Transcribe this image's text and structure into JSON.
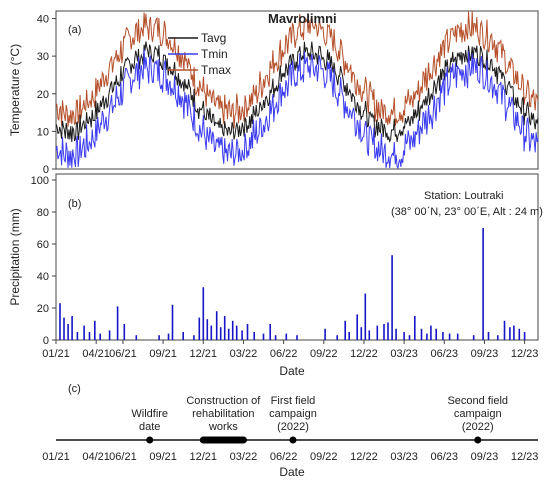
{
  "x_ticks": [
    "01/21",
    "04/21",
    "06/21",
    "09/21",
    "12/21",
    "03/22",
    "06/22",
    "09/22",
    "12/22",
    "03/23",
    "06/23",
    "09/23",
    "12/23"
  ],
  "x_label": "Date",
  "panel_a": {
    "tag": "(a)",
    "title": "Mavrolimni",
    "ylabel": "Temperature (°C)",
    "yticks": [
      "0",
      "10",
      "20",
      "30",
      "40"
    ],
    "legend": [
      {
        "name": "Tavg",
        "color": "#1a1a1a"
      },
      {
        "name": "Tmin",
        "color": "#3b3bf0"
      },
      {
        "name": "Tmax",
        "color": "#b5502a"
      }
    ]
  },
  "panel_b": {
    "tag": "(b)",
    "ylabel": "Precipitation (mm)",
    "yticks": [
      "0",
      "20",
      "40",
      "60",
      "80",
      "100"
    ],
    "station_line1": "Station: Loutraki",
    "station_line2": "(38° 00΄N, 23° 00΄E, Alt : 24 m)",
    "bar_color": "#1515c8"
  },
  "panel_c": {
    "tag": "(c)",
    "events": [
      {
        "label_lines": [
          "Wildfire",
          "date"
        ],
        "month": 7
      },
      {
        "label_lines": [
          "Construction of",
          "rehabilitation",
          "works"
        ],
        "month_start": 11,
        "month_end": 14
      },
      {
        "label_lines": [
          "First field",
          "campaign",
          "(2022)"
        ],
        "month": 17.7
      },
      {
        "label_lines": [
          "Second field",
          "campaign",
          "(2022)"
        ],
        "month": 31.5
      }
    ]
  },
  "chart_data": [
    {
      "type": "line",
      "title": "Mavrolimni",
      "xlabel": "Date",
      "ylabel": "Temperature (°C)",
      "ylim": [
        0,
        42
      ],
      "x_range": [
        "2021-01",
        "2023-12"
      ],
      "series": [
        {
          "name": "Tavg",
          "color": "#1a1a1a",
          "seasonal": {
            "winter_low": 10,
            "summer_high": 31
          }
        },
        {
          "name": "Tmin",
          "color": "#3b3bf0",
          "seasonal": {
            "winter_low": 4,
            "summer_high": 27
          }
        },
        {
          "name": "Tmax",
          "color": "#b5502a",
          "seasonal": {
            "winter_low": 15,
            "summer_high": 38
          }
        }
      ]
    },
    {
      "type": "bar",
      "ylabel": "Precipitation (mm)",
      "xlabel": "Date",
      "ylim": [
        0,
        100
      ],
      "x_range": [
        "2021-01",
        "2023-12"
      ],
      "events_mm_by_month": [
        [
          0.3,
          23
        ],
        [
          0.6,
          14
        ],
        [
          0.9,
          10
        ],
        [
          1.2,
          15
        ],
        [
          1.6,
          5
        ],
        [
          2.1,
          9
        ],
        [
          2.5,
          5
        ],
        [
          2.9,
          12
        ],
        [
          3.3,
          4
        ],
        [
          4.0,
          6
        ],
        [
          4.6,
          21
        ],
        [
          5.1,
          10
        ],
        [
          6.0,
          3
        ],
        [
          7.7,
          3
        ],
        [
          8.4,
          4
        ],
        [
          8.7,
          22
        ],
        [
          9.5,
          5
        ],
        [
          10.3,
          3
        ],
        [
          10.7,
          14
        ],
        [
          11.0,
          33
        ],
        [
          11.3,
          13
        ],
        [
          11.6,
          9
        ],
        [
          12.0,
          18
        ],
        [
          12.3,
          8
        ],
        [
          12.6,
          15
        ],
        [
          12.9,
          7
        ],
        [
          13.2,
          12
        ],
        [
          13.5,
          9
        ],
        [
          13.9,
          6
        ],
        [
          14.3,
          10
        ],
        [
          14.8,
          5
        ],
        [
          15.5,
          4
        ],
        [
          16.0,
          10
        ],
        [
          16.4,
          3
        ],
        [
          17.2,
          4
        ],
        [
          18.0,
          3
        ],
        [
          20.1,
          7
        ],
        [
          21.0,
          3
        ],
        [
          21.6,
          12
        ],
        [
          21.9,
          5
        ],
        [
          22.5,
          16
        ],
        [
          22.8,
          8
        ],
        [
          23.1,
          29
        ],
        [
          23.4,
          6
        ],
        [
          24.0,
          9
        ],
        [
          24.5,
          10
        ],
        [
          24.8,
          11
        ],
        [
          25.1,
          53
        ],
        [
          25.4,
          7
        ],
        [
          26.0,
          5
        ],
        [
          26.4,
          3
        ],
        [
          26.8,
          15
        ],
        [
          27.3,
          7
        ],
        [
          27.7,
          4
        ],
        [
          28.0,
          9
        ],
        [
          28.4,
          7
        ],
        [
          28.9,
          5
        ],
        [
          29.4,
          4
        ],
        [
          30.0,
          4
        ],
        [
          31.2,
          3
        ],
        [
          31.9,
          70
        ],
        [
          32.3,
          5
        ],
        [
          33.0,
          3
        ],
        [
          33.5,
          12
        ],
        [
          33.9,
          8
        ],
        [
          34.2,
          9
        ],
        [
          34.6,
          7
        ],
        [
          35.0,
          5
        ]
      ]
    }
  ]
}
